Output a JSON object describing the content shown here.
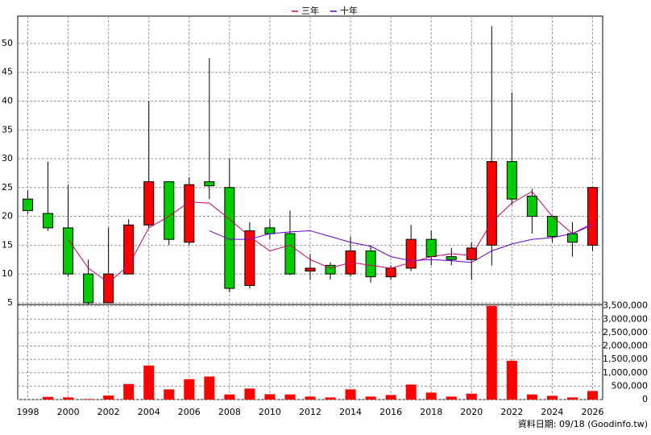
{
  "chart_data": [
    {
      "type": "candlestick",
      "x": [
        1998,
        1999,
        2000,
        2001,
        2002,
        2003,
        2004,
        2005,
        2006,
        2007,
        2008,
        2009,
        2010,
        2011,
        2012,
        2013,
        2014,
        2015,
        2016,
        2017,
        2018,
        2019,
        2020,
        2021,
        2022,
        2023,
        2024,
        2025,
        2026
      ],
      "open": [
        23,
        20.5,
        18,
        10,
        5,
        10,
        18.5,
        26,
        15.5,
        26,
        25,
        8,
        18,
        17,
        10.5,
        11.5,
        10,
        14,
        9.5,
        11,
        16,
        13,
        12.5,
        15,
        29.5,
        23.5,
        20,
        17,
        15
      ],
      "high": [
        24.5,
        29.5,
        25.5,
        12.5,
        18,
        19.5,
        40,
        26,
        26.8,
        47.5,
        30,
        19,
        19.5,
        21,
        13.5,
        12,
        16.5,
        15,
        11.5,
        18.5,
        17.5,
        14.5,
        15.5,
        53,
        41.5,
        24.8,
        20,
        19,
        25
      ],
      "low": [
        20.5,
        17.5,
        9.5,
        4.7,
        5,
        10,
        18,
        15,
        15,
        23,
        6.8,
        7.5,
        16,
        9.8,
        9,
        9,
        9.5,
        8.5,
        9,
        10.5,
        11.5,
        11.5,
        9,
        11.5,
        22,
        17,
        15.5,
        13,
        14
      ],
      "close": [
        21,
        18,
        10,
        5,
        10,
        18.5,
        26,
        16,
        25.5,
        25.3,
        7.5,
        17.5,
        17,
        10,
        11,
        10,
        14,
        9.5,
        11,
        16,
        13,
        12.5,
        14.5,
        29.5,
        23,
        20,
        16.5,
        15.5,
        25
      ],
      "up_color": "#ff0000",
      "down_color": "#00cc00",
      "series": [
        {
          "name": "三年",
          "color": "#cc0066",
          "values": [
            null,
            null,
            16,
            11,
            8.5,
            11.5,
            18,
            20,
            22.5,
            22.3,
            19.5,
            16.5,
            14,
            15,
            12.5,
            11,
            12,
            11.5,
            11,
            12,
            13,
            13.5,
            13.2,
            19,
            22.3,
            24.3,
            20,
            17,
            18.8
          ]
        },
        {
          "name": "十年",
          "color": "#6600cc",
          "values": [
            null,
            null,
            null,
            null,
            null,
            null,
            null,
            null,
            null,
            17.5,
            16,
            16,
            17,
            17.3,
            17.5,
            16.5,
            15.5,
            14.8,
            13,
            12.3,
            12.5,
            12.3,
            12,
            14,
            15.2,
            16,
            16.3,
            17,
            18.5
          ]
        }
      ],
      "xlim": [
        1997.5,
        2026.5
      ],
      "xticks": [
        1998,
        2000,
        2002,
        2004,
        2006,
        2008,
        2010,
        2012,
        2014,
        2016,
        2018,
        2020,
        2022,
        2024,
        2026
      ],
      "ylim": [
        4.7,
        54.75
      ],
      "yticks": [
        5,
        10,
        15,
        20,
        25,
        30,
        35,
        40,
        45,
        50
      ],
      "grid": true,
      "legend": "top"
    },
    {
      "type": "bar",
      "x": [
        1998,
        1999,
        2000,
        2001,
        2002,
        2003,
        2004,
        2005,
        2006,
        2007,
        2008,
        2009,
        2010,
        2011,
        2012,
        2013,
        2014,
        2015,
        2016,
        2017,
        2018,
        2019,
        2020,
        2021,
        2022,
        2023,
        2024,
        2025,
        2026
      ],
      "values": [
        0,
        100000,
        80000,
        20000,
        150000,
        580000,
        1270000,
        380000,
        760000,
        860000,
        190000,
        410000,
        200000,
        190000,
        110000,
        80000,
        380000,
        110000,
        170000,
        560000,
        260000,
        110000,
        220000,
        3500000,
        1450000,
        190000,
        140000,
        80000,
        320000
      ],
      "color": "#ff0000",
      "xlim": [
        1997.5,
        2026.5
      ],
      "ylim": [
        0,
        3550000
      ],
      "yticks": [
        0,
        {
          "value": 500000,
          "label": "500,000"
        },
        {
          "value": 1000000,
          "label": "1,000,000"
        },
        {
          "value": 1500000,
          "label": "1,500,000"
        },
        {
          "value": 2000000,
          "label": "2,000,000"
        },
        {
          "value": 2500000,
          "label": "2,500,000"
        },
        {
          "value": 3000000,
          "label": "3,000,000"
        },
        {
          "value": 3500000,
          "label": "3,500,000"
        }
      ],
      "grid": true
    }
  ],
  "note": "資料日期: 09/18 (Goodinfo.tw)"
}
